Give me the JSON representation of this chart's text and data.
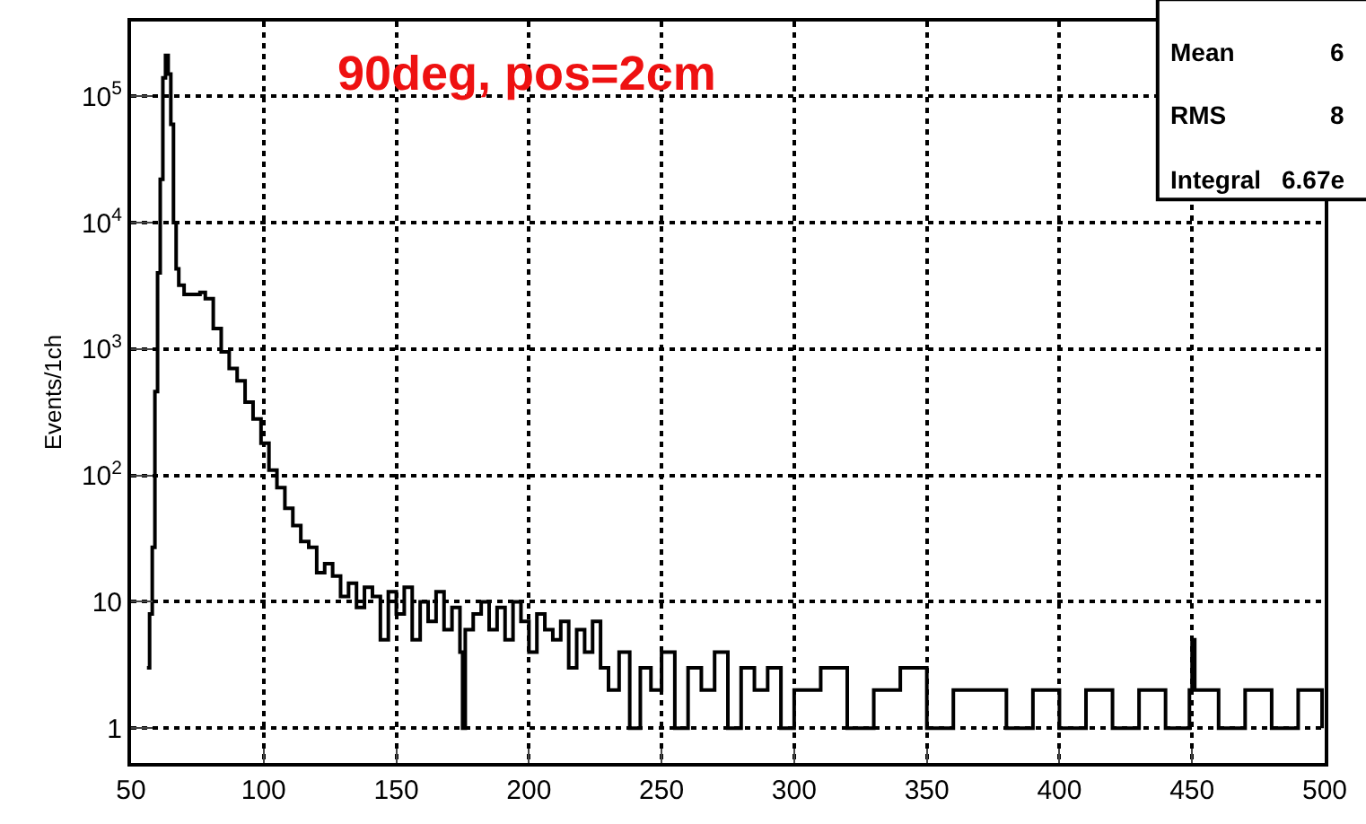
{
  "chart_data": {
    "type": "step",
    "title": "90deg, pos=2cm",
    "ylabel": "Events/1ch",
    "x": [
      56,
      57,
      58,
      59,
      60,
      61,
      62,
      63,
      64,
      65,
      66,
      67,
      68,
      70,
      73,
      76,
      78,
      81,
      84,
      87,
      90,
      93,
      96,
      99,
      102,
      105,
      108,
      111,
      114,
      117,
      120,
      123,
      126,
      129,
      132,
      135,
      138,
      141,
      144,
      147,
      150,
      153,
      156,
      159,
      162,
      165,
      168,
      171,
      174,
      175,
      176,
      179,
      182,
      185,
      188,
      191,
      194,
      197,
      200,
      203,
      206,
      209,
      212,
      215,
      218,
      221,
      224,
      227,
      230,
      234,
      238,
      242,
      246,
      250,
      255,
      260,
      265,
      270,
      275,
      280,
      285,
      290,
      295,
      300,
      310,
      320,
      330,
      340,
      350,
      360,
      370,
      380,
      390,
      400,
      410,
      420,
      430,
      440,
      449,
      450,
      451,
      460,
      470,
      480,
      490,
      499
    ],
    "series": [
      {
        "color": "#000000",
        "values": [
          3,
          8,
          27,
          460,
          4000,
          22000,
          140000,
          210000,
          150000,
          60000,
          10000,
          4300,
          3200,
          2700,
          2700,
          2800,
          2500,
          1450,
          950,
          700,
          560,
          380,
          280,
          180,
          110,
          80,
          55,
          40,
          30,
          27,
          17,
          20,
          16,
          11,
          14,
          9,
          13,
          11,
          5,
          12,
          8,
          13,
          5,
          10,
          7,
          12,
          6,
          9,
          4,
          1,
          6,
          8,
          10,
          6,
          9,
          5,
          10,
          7,
          4,
          8,
          6,
          5,
          7,
          3,
          6,
          4,
          7,
          3,
          2,
          4,
          1,
          3,
          2,
          4,
          1,
          3,
          2,
          4,
          1,
          3,
          2,
          3,
          1,
          2,
          3,
          1,
          2,
          3,
          1,
          2,
          2,
          1,
          2,
          1,
          2,
          1,
          2,
          1,
          2,
          5,
          2,
          1,
          2,
          1,
          2,
          1
        ]
      }
    ],
    "log": "y",
    "xlim": [
      50,
      500
    ],
    "xticks": [
      50,
      100,
      150,
      200,
      250,
      300,
      350,
      400,
      450,
      500
    ],
    "ylim": [
      0.53,
      390000
    ],
    "yticks": [
      1,
      10,
      {
        "value": 100,
        "label": "10$^{2}$"
      },
      {
        "value": 1000,
        "label": "10$^{3}$"
      },
      {
        "value": 10000,
        "label": "10$^{4}$"
      },
      {
        "value": 100000,
        "label": "10$^{5}$"
      }
    ],
    "grid": true,
    "legend": false,
    "marker": "none",
    "line_style": "solid",
    "annotations": [
      "Mean",
      "6",
      "RMS",
      "8",
      "Integral",
      "6.67e"
    ]
  }
}
